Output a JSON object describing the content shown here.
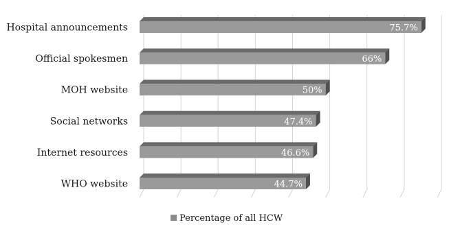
{
  "chart_data": {
    "type": "bar",
    "orientation": "horizontal",
    "categories": [
      "Hospital announcements",
      "Official spokesmen",
      "MOH website",
      "Social networks",
      "Internet resources",
      "WHO website"
    ],
    "series": [
      {
        "name": "Percentage of all HCW",
        "values": [
          75.7,
          66,
          50,
          47.4,
          46.6,
          44.7
        ],
        "labels": [
          "75.7%",
          "66%",
          "50%",
          "47.4%",
          "46.6%",
          "44.7%"
        ]
      }
    ],
    "xlim": [
      0,
      80
    ],
    "grid": true,
    "legend_position": "bottom",
    "style": "3d",
    "colors": {
      "bar_front": "#9a9a9a",
      "bar_top": "#6a6a6a",
      "bar_side": "#4f4f4f",
      "grid": "#d4d4d4",
      "legend_swatch": "#8c8c8c"
    }
  }
}
